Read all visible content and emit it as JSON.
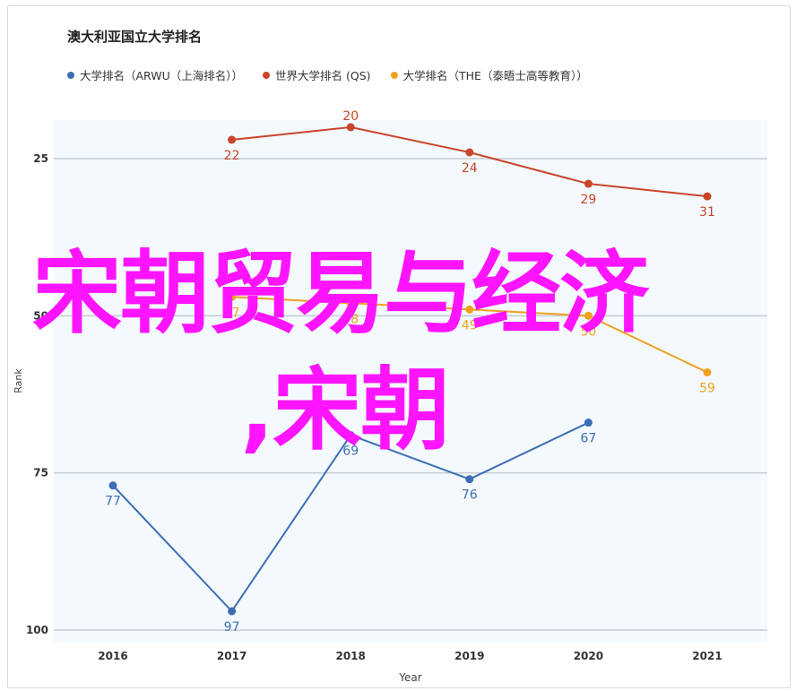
{
  "chart_data": {
    "type": "line",
    "title": "澳大利亚国立大学排名",
    "xlabel": "Year",
    "ylabel": "Rank",
    "categories": [
      "2016",
      "2017",
      "2018",
      "2019",
      "2020",
      "2021"
    ],
    "y_reversed": true,
    "ylim": [
      17,
      100
    ],
    "yticks": [
      25,
      50,
      75,
      100
    ],
    "grid": true,
    "legend_position": "top",
    "series": [
      {
        "name": "大学排名（ARWU（上海排名））",
        "color": "#3c6eb4",
        "values": [
          77,
          97,
          69,
          76,
          67,
          null
        ],
        "labels": [
          "77",
          "97",
          "69",
          "76",
          "67",
          ""
        ]
      },
      {
        "name": "世界大学排名 (QS)",
        "color": "#c9452a",
        "values": [
          null,
          22,
          20,
          24,
          29,
          31
        ],
        "labels": [
          "",
          "22",
          "20",
          "24",
          "29",
          "31"
        ]
      },
      {
        "name": "大学排名（THE（泰晤士高等教育））",
        "color": "#f0a020",
        "values": [
          null,
          47,
          48,
          49,
          50,
          59
        ],
        "labels": [
          "",
          "47",
          "48",
          "49",
          "50",
          "59"
        ]
      }
    ]
  },
  "overlay": {
    "line1": "宋朝贸易与经济",
    "line2": ",宋朝"
  }
}
